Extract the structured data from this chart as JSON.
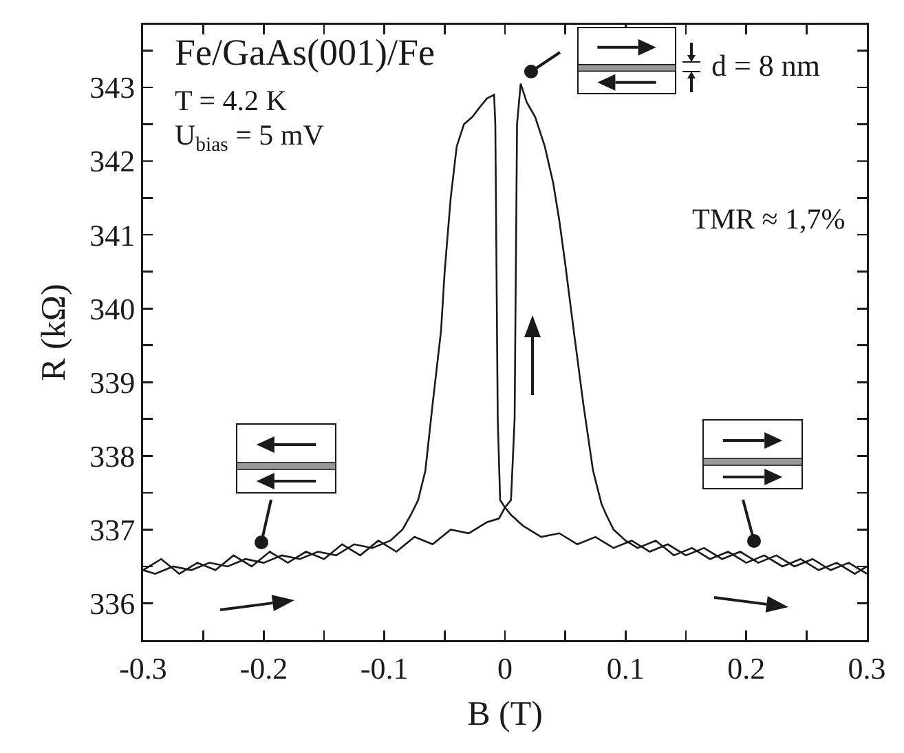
{
  "chart_data": {
    "type": "line",
    "xlabel": "B (T)",
    "ylabel": "R (kΩ)",
    "xlim": [
      -0.3,
      0.3
    ],
    "xticks": [
      -0.3,
      {
        "value": -0.25,
        "label": null
      },
      -0.2,
      {
        "value": -0.15,
        "label": null
      },
      -0.1,
      {
        "value": -0.05,
        "label": null
      },
      0.0,
      {
        "value": 0.05,
        "label": null
      },
      0.1,
      {
        "value": 0.15,
        "label": null
      },
      0.2,
      {
        "value": 0.25,
        "label": null
      },
      0.3
    ],
    "ylim": [
      335.5,
      343.85
    ],
    "yticks": [
      {
        "value": 335.5,
        "label": null
      },
      336,
      {
        "value": 336.5,
        "label": null
      },
      337,
      {
        "value": 337.5,
        "label": null
      },
      338,
      {
        "value": 338.5,
        "label": null
      },
      339,
      {
        "value": 339.5,
        "label": null
      },
      340,
      {
        "value": 340.5,
        "label": null
      },
      341,
      {
        "value": 341.5,
        "label": null
      },
      342,
      {
        "value": 342.5,
        "label": null
      },
      343,
      {
        "value": 343.5,
        "label": null
      }
    ],
    "series": [
      {
        "color": "#1a1a1a",
        "x": [
          -0.3,
          -0.285,
          -0.27,
          -0.255,
          -0.24,
          -0.225,
          -0.21,
          -0.195,
          -0.18,
          -0.165,
          -0.15,
          -0.135,
          -0.12,
          -0.105,
          -0.09,
          -0.075,
          -0.06,
          -0.045,
          -0.03,
          -0.015,
          -0.005,
          0.0,
          0.005,
          0.008,
          0.009,
          0.01,
          0.013,
          0.018,
          0.025,
          0.033,
          0.04,
          0.045,
          0.05,
          0.057,
          0.065,
          0.073,
          0.08,
          0.084,
          0.09,
          0.1,
          0.11,
          0.125,
          0.14,
          0.155,
          0.17,
          0.185,
          0.2,
          0.215,
          0.23,
          0.245,
          0.26,
          0.275,
          0.29,
          0.3
        ],
        "values": [
          336.45,
          336.6,
          336.4,
          336.55,
          336.45,
          336.65,
          336.5,
          336.7,
          336.55,
          336.7,
          336.6,
          336.8,
          336.65,
          336.85,
          336.7,
          336.9,
          336.8,
          337.0,
          336.95,
          337.1,
          337.15,
          337.3,
          337.4,
          338.5,
          340.5,
          342.5,
          343.05,
          342.8,
          342.6,
          342.2,
          341.7,
          341.2,
          340.6,
          339.7,
          338.7,
          337.8,
          337.35,
          337.2,
          337.0,
          336.85,
          336.75,
          336.85,
          336.65,
          336.75,
          336.6,
          336.7,
          336.55,
          336.65,
          336.5,
          336.6,
          336.45,
          336.55,
          336.4,
          336.5
        ]
      },
      {
        "color": "#1a1a1a",
        "x": [
          0.3,
          0.285,
          0.27,
          0.255,
          0.24,
          0.225,
          0.21,
          0.195,
          0.18,
          0.165,
          0.15,
          0.135,
          0.12,
          0.105,
          0.09,
          0.075,
          0.06,
          0.045,
          0.03,
          0.015,
          0.005,
          0.0,
          -0.004,
          -0.006,
          -0.007,
          -0.008,
          -0.009,
          -0.015,
          -0.02,
          -0.027,
          -0.034,
          -0.04,
          -0.045,
          -0.05,
          -0.053,
          -0.06,
          -0.066,
          -0.072,
          -0.078,
          -0.085,
          -0.095,
          -0.11,
          -0.125,
          -0.14,
          -0.155,
          -0.17,
          -0.185,
          -0.2,
          -0.215,
          -0.23,
          -0.245,
          -0.26,
          -0.275,
          -0.29,
          -0.3
        ],
        "values": [
          336.4,
          336.55,
          336.45,
          336.6,
          336.5,
          336.65,
          336.55,
          336.7,
          336.6,
          336.75,
          336.65,
          336.8,
          336.7,
          336.85,
          336.75,
          336.9,
          336.8,
          336.95,
          336.9,
          337.05,
          337.2,
          337.3,
          337.4,
          338.5,
          340.5,
          342.5,
          342.9,
          342.85,
          342.75,
          342.6,
          342.5,
          342.2,
          341.5,
          340.5,
          339.7,
          338.7,
          337.8,
          337.4,
          337.2,
          337.0,
          336.85,
          336.75,
          336.8,
          336.65,
          336.7,
          336.6,
          336.65,
          336.55,
          336.6,
          336.5,
          336.55,
          336.45,
          336.5,
          336.4,
          336.45
        ]
      }
    ],
    "marker": "none",
    "line_style": "solid",
    "grid": false,
    "annotations": [
      "Fe/GaAs(001)/Fe",
      "T = 4.2 K",
      "U$_{bias}$ = 5 mV",
      "d = 8 nm",
      "TMR ≈ 1,7%"
    ]
  }
}
